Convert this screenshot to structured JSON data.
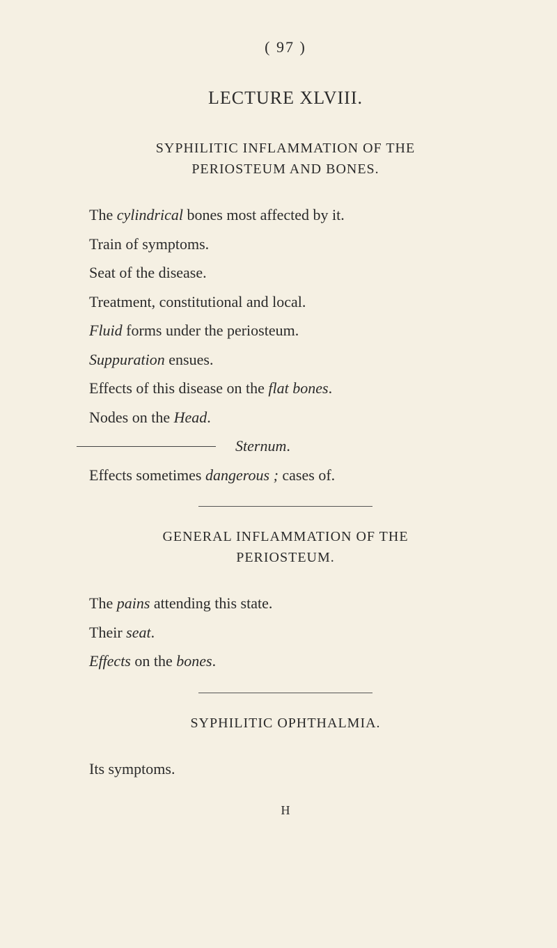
{
  "page_number": "( 97 )",
  "lecture_title": "LECTURE XLVIII.",
  "section1": {
    "heading_line1": "SYPHILITIC INFLAMMATION OF THE",
    "heading_line2": "PERIOSTEUM AND BONES.",
    "lines": [
      {
        "pre": "The ",
        "italic": "cylindrical",
        "post": " bones most affected by it."
      },
      {
        "pre": "Train of symptoms.",
        "italic": "",
        "post": ""
      },
      {
        "pre": "Seat of the disease.",
        "italic": "",
        "post": ""
      },
      {
        "pre": "Treatment, constitutional and local.",
        "italic": "",
        "post": ""
      },
      {
        "pre": "",
        "italic": "Fluid",
        "post": " forms under the periosteum."
      },
      {
        "pre": "",
        "italic": "Suppuration",
        "post": " ensues."
      },
      {
        "pre": "Effects of this disease on the ",
        "italic": "flat bones",
        "post": "."
      },
      {
        "pre": "Nodes on the ",
        "italic": "Head",
        "post": "."
      }
    ],
    "sternum_italic": "Sternum",
    "sternum_post": ".",
    "effects_pre": "Effects sometimes ",
    "effects_italic": "dangerous ;",
    "effects_post": " cases of."
  },
  "section2": {
    "heading_line1": "GENERAL INFLAMMATION OF THE",
    "heading_line2": "PERIOSTEUM.",
    "line1_pre": "The ",
    "line1_italic": "pains",
    "line1_post": " attending this state.",
    "line2_pre": "Their ",
    "line2_italic": "seat",
    "line2_post": ".",
    "line3_italic": "Effects",
    "line3_mid": " on the ",
    "line3_italic2": "bones",
    "line3_post": "."
  },
  "section3": {
    "heading": "SYPHILITIC OPHTHALMIA.",
    "line1": "Its symptoms."
  },
  "footer": "H",
  "colors": {
    "background": "#f5f0e3",
    "text": "#2a2a2a",
    "line": "#555"
  },
  "typography": {
    "body_fontsize": 22,
    "heading_fontsize": 20,
    "title_fontsize": 26,
    "font_family": "Georgia, Times New Roman, serif"
  }
}
